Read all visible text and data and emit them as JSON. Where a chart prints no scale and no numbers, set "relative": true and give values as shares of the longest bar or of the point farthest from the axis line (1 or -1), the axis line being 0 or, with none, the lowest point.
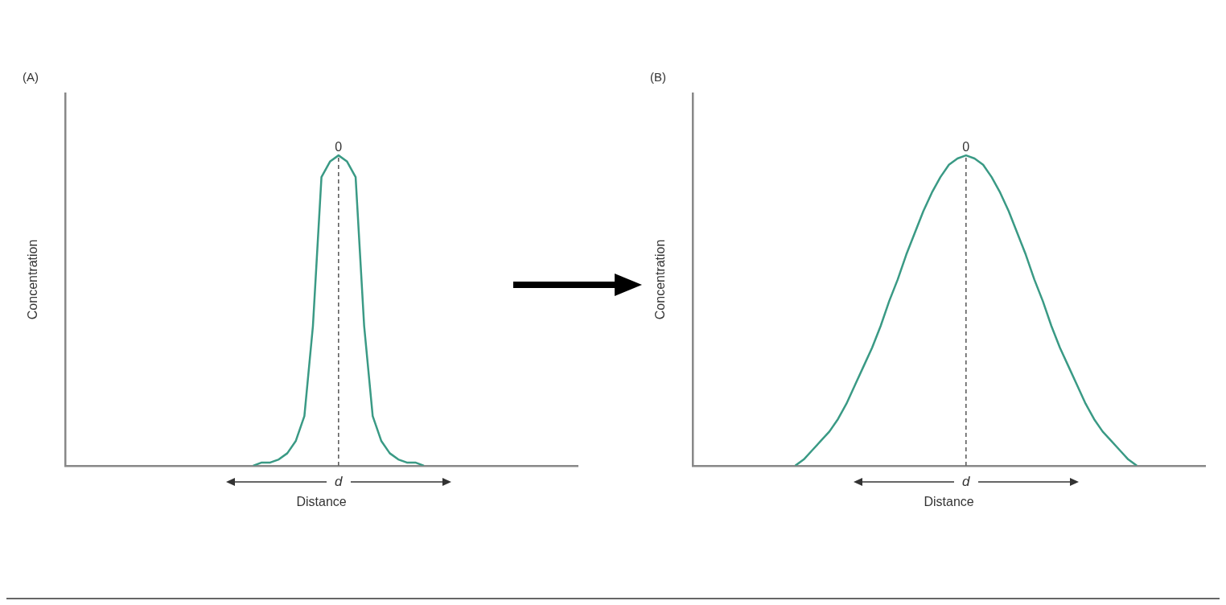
{
  "chart_data": [
    {
      "type": "line",
      "title": "(A)",
      "xlabel": "Distance",
      "ylabel": "Concentration",
      "relative": true,
      "tick_labels": false,
      "marker": "none",
      "line_style": "solid",
      "categories": [
        null,
        null,
        null,
        null,
        null,
        null,
        null,
        null,
        null,
        null,
        null,
        null,
        null,
        null,
        null,
        null,
        null,
        null,
        null,
        null,
        null,
        null,
        null,
        null,
        null,
        null,
        null,
        null,
        null,
        null,
        null,
        null,
        null,
        null,
        null,
        null,
        null,
        null,
        null,
        null,
        null,
        null,
        null,
        null,
        null,
        null,
        null,
        null,
        null,
        null,
        null,
        null,
        null,
        null,
        null,
        null,
        null,
        null,
        null,
        null,
        null
      ],
      "series": [
        {
          "color": "#3a9a85",
          "values": [
            null,
            null,
            null,
            null,
            null,
            null,
            null,
            null,
            null,
            null,
            null,
            null,
            null,
            null,
            null,
            null,
            null,
            null,
            null,
            null,
            null,
            null,
            0,
            0.01,
            0.01,
            0.02,
            0.04,
            0.08,
            0.16,
            0.45,
            0.93,
            0.98,
            1,
            0.98,
            0.93,
            0.45,
            0.16,
            0.08,
            0.04,
            0.02,
            0.01,
            0.01,
            0,
            null,
            null,
            null,
            null,
            null,
            null,
            null,
            null,
            null,
            null,
            null,
            null,
            null,
            null,
            null,
            null,
            null,
            null
          ]
        }
      ],
      "ref_lines": [
        {
          "axis": "x",
          "label": "0",
          "line_style": "dashed",
          "color": "#555555"
        }
      ],
      "annotations": [
        "d"
      ]
    },
    {
      "type": "line",
      "title": "(B)",
      "xlabel": "Distance",
      "ylabel": "Concentration",
      "relative": true,
      "tick_labels": false,
      "marker": "none",
      "line_style": "solid",
      "categories": [
        null,
        null,
        null,
        null,
        null,
        null,
        null,
        null,
        null,
        null,
        null,
        null,
        null,
        null,
        null,
        null,
        null,
        null,
        null,
        null,
        null,
        null,
        null,
        null,
        null,
        null,
        null,
        null,
        null,
        null,
        null,
        null,
        null,
        null,
        null,
        null,
        null,
        null,
        null,
        null,
        null,
        null,
        null,
        null,
        null,
        null,
        null,
        null,
        null,
        null,
        null,
        null,
        null,
        null,
        null,
        null,
        null,
        null,
        null,
        null,
        null
      ],
      "series": [
        {
          "color": "#3a9a85",
          "values": [
            null,
            null,
            null,
            null,
            null,
            null,
            null,
            null,
            null,
            null,
            null,
            null,
            0,
            0.02,
            0.05,
            0.08,
            0.11,
            0.15,
            0.2,
            0.26,
            0.32,
            0.38,
            0.45,
            0.53,
            0.6,
            0.68,
            0.75,
            0.82,
            0.88,
            0.93,
            0.97,
            0.99,
            1,
            0.99,
            0.97,
            0.93,
            0.88,
            0.82,
            0.75,
            0.68,
            0.6,
            0.53,
            0.45,
            0.38,
            0.32,
            0.26,
            0.2,
            0.15,
            0.11,
            0.08,
            0.05,
            0.02,
            0,
            null,
            null,
            null,
            null,
            null,
            null,
            null,
            null
          ]
        }
      ],
      "ref_lines": [
        {
          "axis": "x",
          "label": "0",
          "line_style": "dashed",
          "color": "#555555"
        }
      ],
      "annotations": [
        "d"
      ]
    }
  ]
}
